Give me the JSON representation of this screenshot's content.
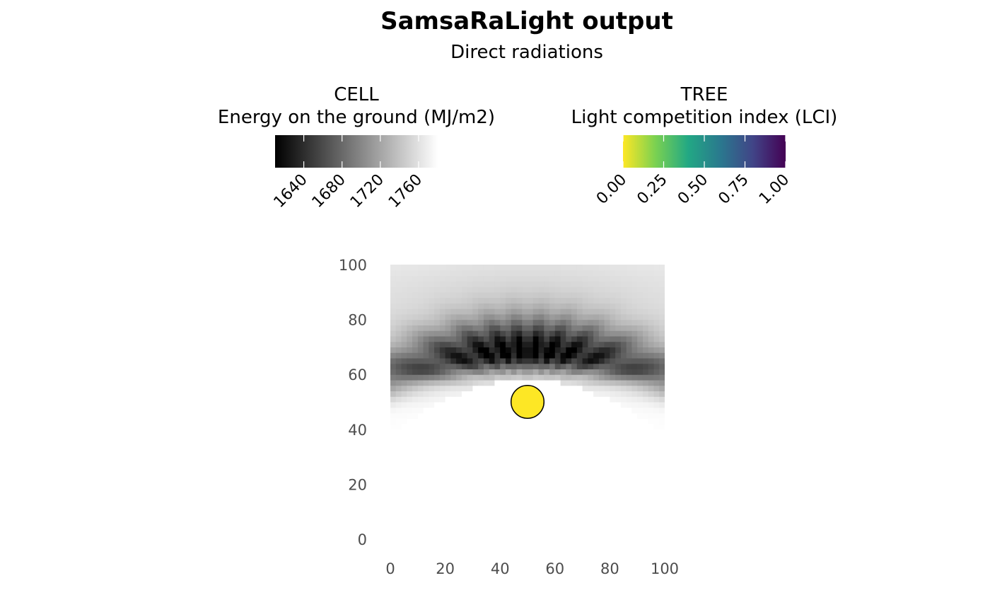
{
  "chart_data": {
    "type": "heatmap",
    "title": "SamsaRaLight output",
    "subtitle": "Direct radiations",
    "xlim": [
      0,
      100
    ],
    "ylim": [
      0,
      100
    ],
    "x_ticks": [
      "0",
      "20",
      "40",
      "60",
      "80",
      "100"
    ],
    "y_ticks": [
      "0",
      "20",
      "40",
      "60",
      "80",
      "100"
    ],
    "grid": false,
    "legend_position": "top",
    "legends": [
      {
        "title_line1": "CELL",
        "title_line2": "Energy on the ground (MJ/m2)",
        "scale": "greyscale",
        "range": [
          1610,
          1780
        ],
        "ticks": [
          1640,
          1680,
          1720,
          1760
        ],
        "tick_labels": [
          "1640",
          "1680",
          "1720",
          "1760"
        ]
      },
      {
        "title_line1": "TREE",
        "title_line2": "Light competition index (LCI)",
        "scale": "viridis-reversed",
        "range": [
          0,
          1
        ],
        "ticks": [
          0,
          0.25,
          0.5,
          0.75,
          1
        ],
        "tick_labels": [
          "0.00",
          "0.25",
          "0.50",
          "0.75",
          "1.00"
        ]
      }
    ],
    "cells": {
      "x_range": [
        0,
        100
      ],
      "y_range": [
        40,
        100
      ],
      "cell_size": 2,
      "description_field": "energy on ground per cell (MJ/m2); shaded band above tree",
      "shadow_center": [
        50,
        68
      ],
      "min_energy": 1610,
      "max_energy": 1780
    },
    "trees": [
      {
        "x": 50,
        "y": 50,
        "lci": 0.0,
        "crown_radius": 6
      }
    ],
    "colors": {
      "viridis": [
        "#fde725",
        "#7ad151",
        "#22a884",
        "#2a788e",
        "#414487",
        "#440154"
      ],
      "tree_stroke": "#000000"
    }
  }
}
